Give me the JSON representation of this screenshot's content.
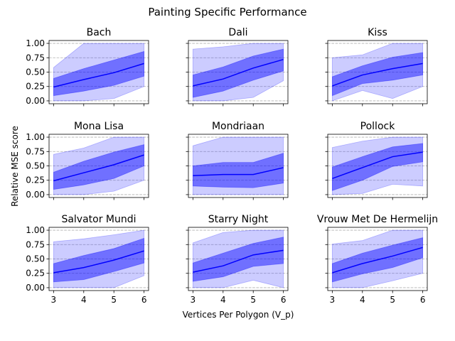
{
  "chart_data": {
    "type": "line",
    "title": "Painting Specific Performance",
    "xlabel": "Vertices Per Polygon (V_p)",
    "ylabel": "Relative MSE score",
    "x": [
      3,
      4,
      5,
      6
    ],
    "xticks": [
      "3",
      "4",
      "5",
      "6"
    ],
    "ylim": [
      -0.05,
      1.05
    ],
    "yticks": [
      "0.00",
      "0.25",
      "0.50",
      "0.75",
      "1.00"
    ],
    "grid": "y-dashed",
    "colors": {
      "line": "#0000ff",
      "band": "#0000ff",
      "grid": "#b0b0b0"
    },
    "panels": [
      {
        "title": "Bach",
        "mean": [
          0.24,
          0.37,
          0.49,
          0.65
        ],
        "std_lo": [
          0.09,
          0.17,
          0.27,
          0.43
        ],
        "std_hi": [
          0.39,
          0.56,
          0.71,
          0.86
        ],
        "min": [
          0.0,
          0.0,
          0.04,
          0.25
        ],
        "max": [
          0.58,
          1.0,
          1.0,
          1.0
        ]
      },
      {
        "title": "Dali",
        "mean": [
          0.26,
          0.38,
          0.57,
          0.72
        ],
        "std_lo": [
          0.06,
          0.17,
          0.36,
          0.52
        ],
        "std_hi": [
          0.45,
          0.59,
          0.78,
          0.9
        ],
        "min": [
          0.0,
          0.0,
          0.06,
          0.35
        ],
        "max": [
          0.9,
          0.94,
          1.0,
          1.0
        ]
      },
      {
        "title": "Kiss",
        "mean": [
          0.26,
          0.45,
          0.56,
          0.65
        ],
        "std_lo": [
          0.09,
          0.3,
          0.36,
          0.45
        ],
        "std_hi": [
          0.42,
          0.61,
          0.76,
          0.84
        ],
        "min": [
          0.0,
          0.18,
          0.04,
          0.25
        ],
        "max": [
          0.75,
          0.8,
          1.0,
          1.0
        ]
      },
      {
        "title": "Mona Lisa",
        "mean": [
          0.24,
          0.38,
          0.52,
          0.69
        ],
        "std_lo": [
          0.09,
          0.17,
          0.28,
          0.5
        ],
        "std_hi": [
          0.39,
          0.58,
          0.74,
          0.87
        ],
        "min": [
          0.0,
          0.0,
          0.06,
          0.25
        ],
        "max": [
          0.7,
          0.81,
          1.0,
          1.0
        ]
      },
      {
        "title": "Mondriaan",
        "mean": [
          0.33,
          0.35,
          0.35,
          0.47
        ],
        "std_lo": [
          0.15,
          0.13,
          0.12,
          0.2
        ],
        "std_hi": [
          0.5,
          0.56,
          0.56,
          0.72
        ],
        "min": [
          0.0,
          0.0,
          0.0,
          0.0
        ],
        "max": [
          0.85,
          1.0,
          1.0,
          1.0
        ]
      },
      {
        "title": "Pollock",
        "mean": [
          0.28,
          0.47,
          0.66,
          0.74
        ],
        "std_lo": [
          0.07,
          0.25,
          0.49,
          0.57
        ],
        "std_hi": [
          0.48,
          0.66,
          0.83,
          0.89
        ],
        "min": [
          0.0,
          0.02,
          0.18,
          0.15
        ],
        "max": [
          0.82,
          0.93,
          1.0,
          1.0
        ]
      },
      {
        "title": "Salvator Mundi",
        "mean": [
          0.26,
          0.35,
          0.48,
          0.64
        ],
        "std_lo": [
          0.1,
          0.14,
          0.28,
          0.43
        ],
        "std_hi": [
          0.42,
          0.56,
          0.68,
          0.86
        ],
        "min": [
          0.0,
          0.0,
          0.0,
          0.21
        ],
        "max": [
          0.8,
          0.85,
          0.92,
          1.0
        ]
      },
      {
        "title": "Starry Night",
        "mean": [
          0.27,
          0.38,
          0.57,
          0.65
        ],
        "std_lo": [
          0.11,
          0.19,
          0.37,
          0.42
        ],
        "std_hi": [
          0.43,
          0.6,
          0.77,
          0.88
        ],
        "min": [
          0.0,
          0.0,
          0.13,
          0.0
        ],
        "max": [
          0.78,
          0.96,
          1.0,
          1.0
        ]
      },
      {
        "title": "Vrouw Met De Hermelijn",
        "mean": [
          0.26,
          0.42,
          0.55,
          0.7
        ],
        "std_lo": [
          0.1,
          0.24,
          0.35,
          0.52
        ],
        "std_hi": [
          0.42,
          0.6,
          0.74,
          0.87
        ],
        "min": [
          0.0,
          0.0,
          0.12,
          0.25
        ],
        "max": [
          0.76,
          0.82,
          1.0,
          1.0
        ]
      }
    ]
  }
}
